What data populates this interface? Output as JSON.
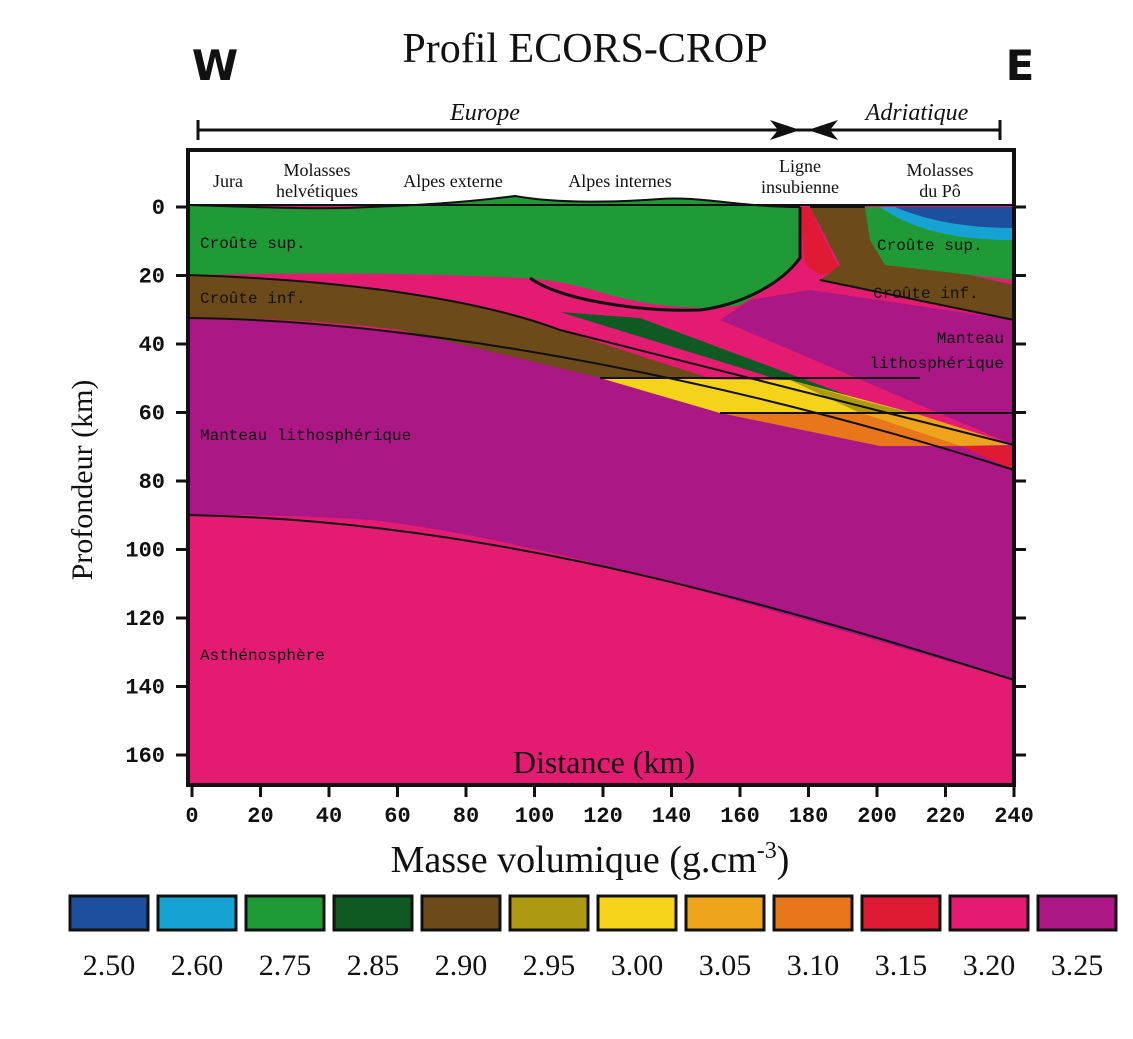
{
  "title": "Profil ECORS-CROP",
  "west_label": "W",
  "east_label": "E",
  "plates": {
    "europe": "Europe",
    "adriatique": "Adriatique"
  },
  "regions": [
    {
      "lines": [
        "Jura"
      ]
    },
    {
      "lines": [
        "Molasses",
        "helvétiques"
      ]
    },
    {
      "lines": [
        "Alpes externe"
      ]
    },
    {
      "lines": [
        "Alpes internes"
      ]
    },
    {
      "lines": [
        "Ligne",
        "insubienne"
      ]
    },
    {
      "lines": [
        "Molasses",
        "du Pô"
      ]
    }
  ],
  "layers": {
    "croute_sup_w": "Croûte sup.",
    "croute_inf_w": "Croûte inf.",
    "manteau_w": "Manteau lithosphérique",
    "asthenosphere": "Asthénosphère",
    "croute_sup_e": "Croûte sup.",
    "croute_inf_e": "Croûte inf.",
    "manteau_e_1": "Manteau",
    "manteau_e_2": "lithosphérique"
  },
  "axes": {
    "ylabel": "Profondeur (km)",
    "xlabel": "Distance (km)",
    "y_ticks": [
      "0",
      "20",
      "40",
      "60",
      "80",
      "100",
      "120",
      "140",
      "160"
    ],
    "x_ticks": [
      "0",
      "20",
      "40",
      "60",
      "80",
      "100",
      "120",
      "140",
      "160",
      "180",
      "200",
      "220",
      "240"
    ],
    "x_range": [
      0,
      240
    ],
    "y_range": [
      0,
      170
    ]
  },
  "legend": {
    "title_main": "Masse volumique (g.cm",
    "title_sup": "-3",
    "title_end": ")",
    "items": [
      {
        "value": "2.50",
        "color": "#1d4f9e"
      },
      {
        "value": "2.60",
        "color": "#17a2d4"
      },
      {
        "value": "2.75",
        "color": "#1f9a37"
      },
      {
        "value": "2.85",
        "color": "#0f5a22"
      },
      {
        "value": "2.90",
        "color": "#6d4a1a"
      },
      {
        "value": "2.95",
        "color": "#ad9a12"
      },
      {
        "value": "3.00",
        "color": "#f5d31a"
      },
      {
        "value": "3.05",
        "color": "#eda41a"
      },
      {
        "value": "3.10",
        "color": "#e8761a"
      },
      {
        "value": "3.15",
        "color": "#e01a35"
      },
      {
        "value": "3.20",
        "color": "#e31c72"
      },
      {
        "value": "3.25",
        "color": "#ab1784"
      }
    ]
  },
  "colors": {
    "asthenosphere": "#e31c72",
    "manteau": "#ab1784",
    "croute_inf": "#6d4a1a",
    "croute_sup": "#1f9a37",
    "dark_green": "#0f5a22",
    "olive": "#ad9a12",
    "yellow": "#f5d31a",
    "orange_light": "#eda41a",
    "orange": "#e8761a",
    "red": "#e01a35",
    "cyan": "#17a2d4",
    "blue": "#1d4f9e"
  }
}
